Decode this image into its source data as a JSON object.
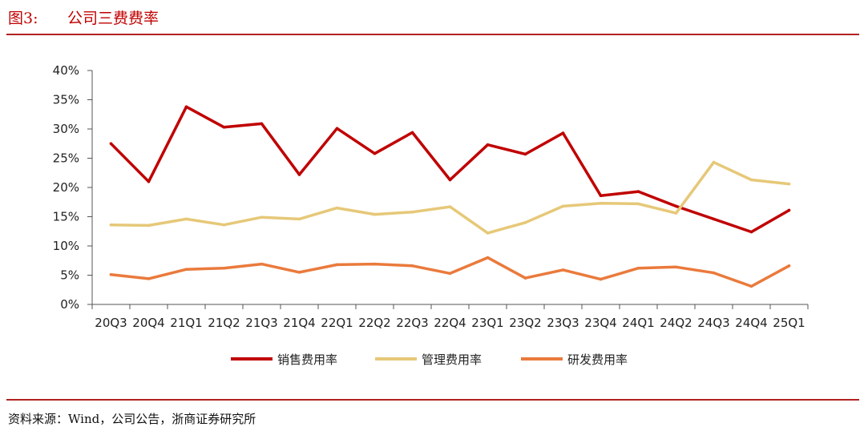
{
  "header": {
    "figure_number": "图3:",
    "title": "公司三费费率"
  },
  "footer": {
    "source": "资料来源：Wind，公司公告，浙商证券研究所"
  },
  "colors": {
    "sales": "#c00000",
    "admin": "#e6c878",
    "rnd": "#ea7a3c",
    "rule": "#b22222",
    "axis": "#555555"
  },
  "chart_data": {
    "type": "line",
    "categories": [
      "20Q3",
      "20Q4",
      "21Q1",
      "21Q2",
      "21Q3",
      "21Q4",
      "22Q1",
      "22Q2",
      "22Q3",
      "22Q4",
      "23Q1",
      "23Q2",
      "23Q3",
      "23Q4",
      "24Q1",
      "24Q2",
      "24Q3",
      "24Q4",
      "25Q1"
    ],
    "series": [
      {
        "name": "销售费用率",
        "color": "#c00000",
        "values": [
          27.5,
          21.0,
          33.8,
          30.3,
          30.9,
          22.2,
          30.1,
          25.8,
          29.4,
          21.3,
          27.3,
          25.7,
          29.3,
          18.6,
          19.3,
          16.8,
          14.6,
          12.4,
          16.1
        ]
      },
      {
        "name": "管理费用率",
        "color": "#e6c878",
        "values": [
          13.6,
          13.5,
          14.6,
          13.6,
          14.9,
          14.6,
          16.5,
          15.4,
          15.8,
          16.7,
          12.2,
          14.0,
          16.8,
          17.3,
          17.2,
          15.6,
          24.3,
          21.3,
          20.6
        ]
      },
      {
        "name": "研发费用率",
        "color": "#ea7a3c",
        "values": [
          5.1,
          4.4,
          6.0,
          6.2,
          6.9,
          5.5,
          6.8,
          6.9,
          6.6,
          5.3,
          8.0,
          4.5,
          5.9,
          4.3,
          6.2,
          6.4,
          5.4,
          3.1,
          6.6
        ]
      }
    ],
    "ylim": [
      0,
      40
    ],
    "y_ticks": [
      0,
      5,
      10,
      15,
      20,
      25,
      30,
      35,
      40
    ],
    "y_tick_labels": [
      "0%",
      "5%",
      "10%",
      "15%",
      "20%",
      "25%",
      "30%",
      "35%",
      "40%"
    ],
    "xlabel": "",
    "ylabel": "",
    "grid": false,
    "legend_position": "bottom"
  }
}
